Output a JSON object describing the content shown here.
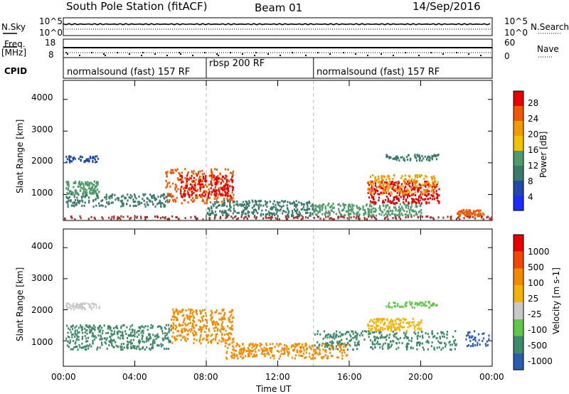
{
  "header": {
    "station": "South Pole Station (fitACF)",
    "beam": "Beam 01",
    "date": "14/Sep/2016"
  },
  "side_labels": {
    "nsky": "N.Sky",
    "freq_a": "Freq.",
    "freq_b": "[MHz]",
    "cpid": "CPID",
    "nsearch": "N.Search",
    "nave": "Nave"
  },
  "mini_ticks": {
    "nsky_top": "10^5",
    "nsky_bottom": "10^0",
    "freq_top": "18",
    "freq_bottom": "8",
    "nsearch_top": "10^5",
    "nsearch_bottom": "10^0",
    "nave_top": "60",
    "nave_bottom": "0"
  },
  "cpid_segments": [
    {
      "label": "normalsound (fast) 157 RF",
      "start": 0,
      "end": 8
    },
    {
      "label": "rbsp 200 RF",
      "start": 8,
      "end": 14
    },
    {
      "label": "normalsound (fast) 157 RF",
      "start": 14,
      "end": 24
    }
  ],
  "colors": {
    "power": [
      "#1a2cff",
      "#2149a8",
      "#3a7a6a",
      "#4f9a6a",
      "#f0c200",
      "#f39a00",
      "#f05800",
      "#e60000"
    ],
    "velocity": [
      "#e60000",
      "#f04800",
      "#f38a00",
      "#f3b300",
      "#c8c8c8",
      "#5fc84a",
      "#3e8a6a",
      "#2a5db0"
    ]
  },
  "chart_data": [
    {
      "type": "heatmap",
      "name": "power",
      "xlabel": "",
      "ylabel": "Slant Range [km]",
      "x_ticks": [
        "00:00",
        "04:00",
        "08:00",
        "12:00",
        "16:00",
        "20:00",
        "00:00"
      ],
      "y_ticks": [
        "1000",
        "2000",
        "3000",
        "4000"
      ],
      "xlim": [
        0,
        24
      ],
      "ylim": [
        180,
        4600
      ],
      "colorbar_label": "Power [dB]",
      "colorbar_ticks": [
        "4",
        "8",
        "12",
        "16",
        "20",
        "24",
        "28"
      ],
      "clim": [
        0,
        32
      ]
    },
    {
      "type": "heatmap",
      "name": "velocity",
      "xlabel": "Time UT",
      "ylabel": "Slant Range [km]",
      "x_ticks": [
        "00:00",
        "04:00",
        "08:00",
        "12:00",
        "16:00",
        "20:00",
        "00:00"
      ],
      "y_ticks": [
        "1000",
        "2000",
        "3000",
        "4000"
      ],
      "xlim": [
        0,
        24
      ],
      "ylim": [
        180,
        4600
      ],
      "colorbar_label": "Velocity [m s-1]",
      "colorbar_ticks": [
        "1000",
        "500",
        "100",
        "25",
        "-25",
        "-100",
        "-500",
        "-1000"
      ]
    }
  ]
}
